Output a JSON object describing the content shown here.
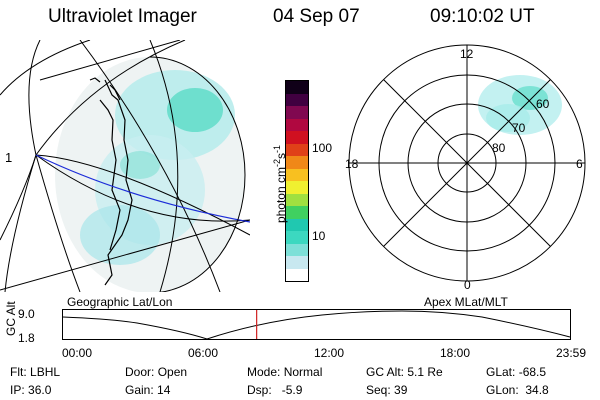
{
  "header": {
    "title": "Ultraviolet Imager",
    "date": "04 Sep 07",
    "time": "09:10:02 UT"
  },
  "geo_panel": {
    "label": "Geographic Lat/Lon",
    "edge_mark": "1"
  },
  "color_bar": {
    "label_main": "photon cm",
    "label_exp1": "-2",
    "label_mid": "s",
    "label_exp2": "-1",
    "ticks": [
      "100",
      "10"
    ],
    "colors": [
      "#ffffff",
      "#c8e8f0",
      "#7ee0d8",
      "#3cd8c0",
      "#20c8b0",
      "#40d060",
      "#a0e040",
      "#f0f030",
      "#f8c020",
      "#f08818",
      "#e04018",
      "#d01020",
      "#b00840",
      "#800850",
      "#400040",
      "#100018"
    ]
  },
  "polar_panel": {
    "label": "Apex MLat/MLT",
    "mlt_labels": {
      "top": "12",
      "bottom": "0",
      "left": "18",
      "right": "6"
    },
    "lat_labels": [
      "60",
      "70",
      "80"
    ]
  },
  "time_plot": {
    "ylabel": "GC Alt",
    "yticks": [
      "9.0",
      "1.8"
    ],
    "xticks": [
      "00:00",
      "06:00",
      "12:00",
      "18:00",
      "23:59"
    ],
    "marker_color": "#d02020",
    "marker_time_hours": 9.167
  },
  "info": {
    "flt_label": "Flt:",
    "flt_value": "LBHL",
    "ip_label": "IP:",
    "ip_value": "36.0",
    "door_label": "Door:",
    "door_value": "Open",
    "gain_label": "Gain:",
    "gain_value": "14",
    "mode_label": "Mode:",
    "mode_value": "Normal",
    "dsp_label": "Dsp:",
    "dsp_value": "-5.9",
    "gcalt_label": "GC Alt:",
    "gcalt_value": "5.1 Re",
    "seq_label": "Seq:",
    "seq_value": "39",
    "glat_label": "GLat:",
    "glat_value": "-68.5",
    "glon_label": "GLon:",
    "glon_value": "34.8"
  }
}
